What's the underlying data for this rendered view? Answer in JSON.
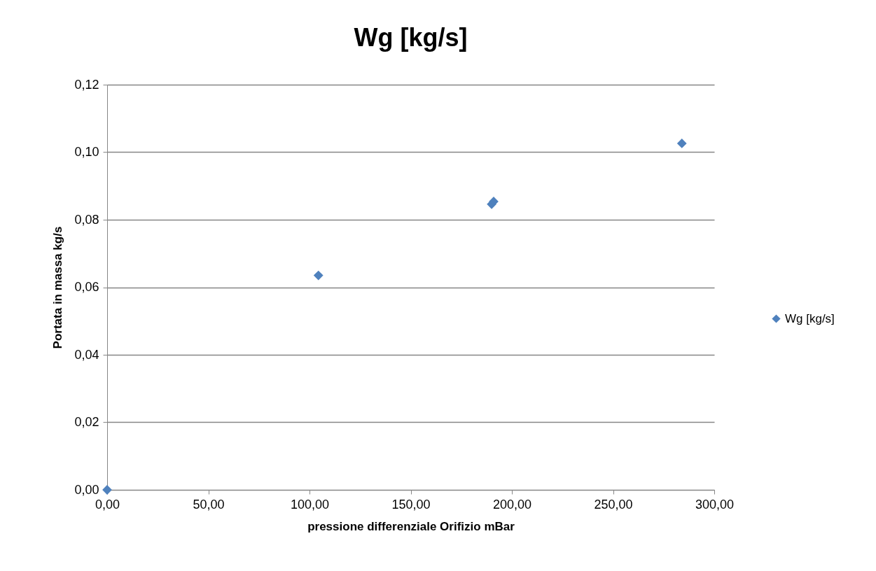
{
  "chart_data": {
    "type": "scatter",
    "title": "Wg [kg/s]",
    "xlabel": "pressione differenziale Orifizio mBar",
    "ylabel": "Portata in massa kg/s",
    "series": [
      {
        "name": "Wg [kg/s]",
        "color": "#4f81bd",
        "x": [
          0,
          104.4,
          190,
          191,
          284
        ],
        "values": [
          0,
          0.0635,
          0.0846,
          0.0854,
          0.1026
        ]
      }
    ],
    "xlim": [
      0,
      300
    ],
    "xticks": [
      {
        "value": 0,
        "label": "0,00"
      },
      {
        "value": 50,
        "label": "50,00"
      },
      {
        "value": 100,
        "label": "100,00"
      },
      {
        "value": 150,
        "label": "150,00"
      },
      {
        "value": 200,
        "label": "200,00"
      },
      {
        "value": 250,
        "label": "250,00"
      },
      {
        "value": 300,
        "label": "300,00"
      }
    ],
    "ylim": [
      0,
      0.12
    ],
    "yticks": [
      {
        "value": 0,
        "label": "0,00"
      },
      {
        "value": 0.02,
        "label": "0,02"
      },
      {
        "value": 0.04,
        "label": "0,04"
      },
      {
        "value": 0.06,
        "label": "0,06"
      },
      {
        "value": 0.08,
        "label": "0,08"
      },
      {
        "value": 0.1,
        "label": "0,10"
      },
      {
        "value": 0.12,
        "label": "0,12"
      }
    ],
    "grid": "y",
    "legend": "right",
    "marker": "diamond"
  }
}
